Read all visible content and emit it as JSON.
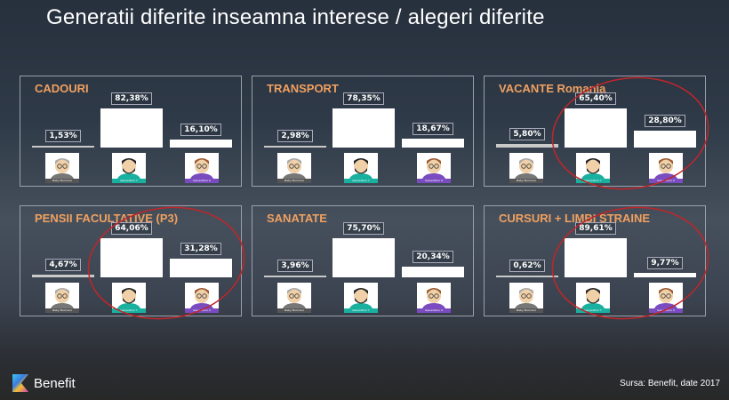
{
  "title": "Generatii diferite inseamna interese / alegeri diferite",
  "footer": {
    "brand": "Benefit",
    "source": "Sursa: Benefit, date 2017"
  },
  "colors": {
    "title_accent": "#f0a060",
    "bar": "#ffffff",
    "highlight_circle": "#c0262a",
    "gen_y_label": "#1ab0a0",
    "gen_x_label": "#7a4cc0",
    "boomers_label": "#555555"
  },
  "chart_data": [
    {
      "type": "bar",
      "title": "CADOURI",
      "categories": [
        "Baby Boomers",
        "Generation Y",
        "Generation X"
      ],
      "values": [
        1.53,
        82.38,
        16.1
      ],
      "labels": [
        "1,53%",
        "82,38%",
        "16,10%"
      ],
      "highlighted": false
    },
    {
      "type": "bar",
      "title": "TRANSPORT",
      "categories": [
        "Baby Boomers",
        "Generation Y",
        "Generation X"
      ],
      "values": [
        2.98,
        78.35,
        18.67
      ],
      "labels": [
        "2,98%",
        "78,35%",
        "18,67%"
      ],
      "highlighted": false
    },
    {
      "type": "bar",
      "title": "VACANTE Romania",
      "categories": [
        "Baby Boomers",
        "Generation Y",
        "Generation X"
      ],
      "values": [
        5.8,
        65.4,
        28.8
      ],
      "labels": [
        "5,80%",
        "65,40%",
        "28,80%"
      ],
      "highlighted": true
    },
    {
      "type": "bar",
      "title": "PENSII FACULTATIVE (P3)",
      "categories": [
        "Baby Boomers",
        "Generation Y",
        "Generation X"
      ],
      "values": [
        4.67,
        64.06,
        31.28
      ],
      "labels": [
        "4,67%",
        "64,06%",
        "31,28%"
      ],
      "highlighted": true
    },
    {
      "type": "bar",
      "title": "SANATATE",
      "categories": [
        "Baby Boomers",
        "Generation Y",
        "Generation X"
      ],
      "values": [
        3.96,
        75.7,
        20.34
      ],
      "labels": [
        "3,96%",
        "75,70%",
        "20,34%"
      ],
      "highlighted": false
    },
    {
      "type": "bar",
      "title": "CURSURI + LIMBI STRAINE",
      "categories": [
        "Baby Boomers",
        "Generation Y",
        "Generation X"
      ],
      "values": [
        0.62,
        89.61,
        9.77
      ],
      "labels": [
        "0,62%",
        "89,61%",
        "9,77%"
      ],
      "highlighted": true
    }
  ]
}
